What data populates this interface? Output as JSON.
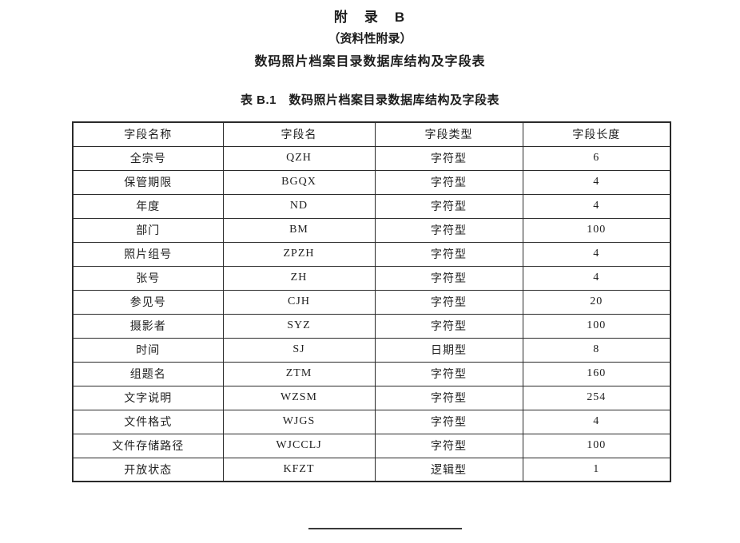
{
  "page": {
    "appendix_title": "附　录　B",
    "appendix_subtitle": "（资料性附录）",
    "appendix_heading": "数码照片档案目录数据库结构及字段表",
    "table_caption": "表 B.1　数码照片档案目录数据库结构及字段表"
  },
  "table": {
    "headers": [
      "字段名称",
      "字段名",
      "字段类型",
      "字段长度"
    ],
    "rows": [
      [
        "全宗号",
        "QZH",
        "字符型",
        "6"
      ],
      [
        "保管期限",
        "BGQX",
        "字符型",
        "4"
      ],
      [
        "年度",
        "ND",
        "字符型",
        "4"
      ],
      [
        "部门",
        "BM",
        "字符型",
        "100"
      ],
      [
        "照片组号",
        "ZPZH",
        "字符型",
        "4"
      ],
      [
        "张号",
        "ZH",
        "字符型",
        "4"
      ],
      [
        "参见号",
        "CJH",
        "字符型",
        "20"
      ],
      [
        "摄影者",
        "SYZ",
        "字符型",
        "100"
      ],
      [
        "时间",
        "SJ",
        "日期型",
        "8"
      ],
      [
        "组题名",
        "ZTM",
        "字符型",
        "160"
      ],
      [
        "文字说明",
        "WZSM",
        "字符型",
        "254"
      ],
      [
        "文件格式",
        "WJGS",
        "字符型",
        "4"
      ],
      [
        "文件存储路径",
        "WJCCLJ",
        "字符型",
        "100"
      ],
      [
        "开放状态",
        "KFZT",
        "逻辑型",
        "1"
      ]
    ]
  },
  "colors": {
    "text": "#1f1f1f",
    "border": "#2a2a2a",
    "background": "#ffffff"
  }
}
